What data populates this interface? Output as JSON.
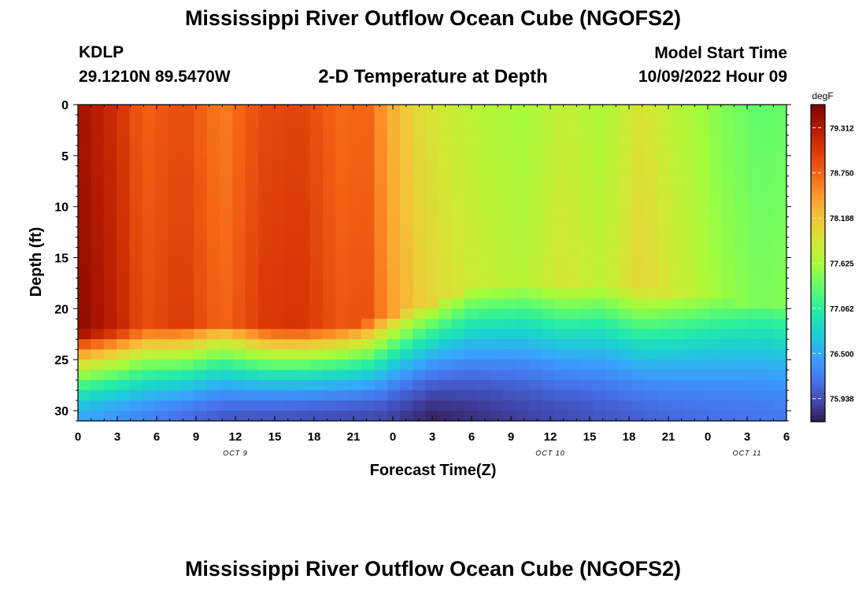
{
  "header": {
    "title": "Mississippi River Outflow Ocean Cube (NGOFS2)",
    "station_id": "KDLP",
    "station_coords": "29.1210N  89.5470W",
    "subtitle": "2-D Temperature at Depth",
    "model_start_label": "Model Start Time",
    "model_start_value": "10/09/2022 Hour 09"
  },
  "footer": {
    "title": "Mississippi River Outflow Ocean Cube (NGOFS2)"
  },
  "chart_data": {
    "type": "heatmap",
    "xlabel": "Forecast Time(Z)",
    "ylabel": "Depth (ft)",
    "x_tick_labels": [
      "0",
      "3",
      "6",
      "9",
      "12",
      "15",
      "18",
      "21",
      "0",
      "3",
      "6",
      "9",
      "12",
      "15",
      "18",
      "21",
      "0",
      "3",
      "6"
    ],
    "x_range_hours": [
      0,
      54
    ],
    "date_labels": [
      {
        "label": "OCT 9",
        "hour": 12
      },
      {
        "label": "OCT 10",
        "hour": 36
      },
      {
        "label": "OCT 11",
        "hour": 51
      }
    ],
    "y_tick_labels": [
      "0",
      "5",
      "10",
      "15",
      "20",
      "25",
      "30"
    ],
    "y_range_ft": [
      0,
      31
    ],
    "y_inverted": true,
    "colorbar": {
      "unit": "degF",
      "tick_labels": [
        "79.312",
        "78.750",
        "78.188",
        "77.625",
        "77.062",
        "76.500",
        "75.938"
      ],
      "range": [
        75.6,
        79.6
      ]
    },
    "colormap": [
      "#30123b",
      "#4145ab",
      "#4675ed",
      "#39a2fc",
      "#1bcfd4",
      "#24eca6",
      "#61fc6c",
      "#a4fc3b",
      "#d1e834",
      "#f3c63a",
      "#fe9b2d",
      "#f36315",
      "#d93806",
      "#b11901",
      "#7a0402"
    ],
    "surface_temperature_degF": [
      {
        "hour": 0,
        "value": 79.4
      },
      {
        "hour": 3,
        "value": 79.1
      },
      {
        "hour": 5,
        "value": 78.75
      },
      {
        "hour": 8,
        "value": 78.9
      },
      {
        "hour": 11,
        "value": 78.6
      },
      {
        "hour": 14,
        "value": 78.9
      },
      {
        "hour": 17,
        "value": 78.95
      },
      {
        "hour": 20,
        "value": 78.7
      },
      {
        "hour": 22,
        "value": 78.75
      },
      {
        "hour": 24,
        "value": 78.3
      },
      {
        "hour": 26,
        "value": 78.0
      },
      {
        "hour": 28,
        "value": 77.85
      },
      {
        "hour": 31,
        "value": 77.7
      },
      {
        "hour": 34,
        "value": 77.6
      },
      {
        "hour": 37,
        "value": 77.8
      },
      {
        "hour": 40,
        "value": 77.65
      },
      {
        "hour": 43,
        "value": 77.95
      },
      {
        "hour": 46,
        "value": 77.7
      },
      {
        "hour": 49,
        "value": 77.45
      },
      {
        "hour": 52,
        "value": 77.3
      },
      {
        "hour": 54,
        "value": 77.35
      }
    ],
    "mixed_layer_depth_ft": [
      {
        "hour": 0,
        "value": 22.5
      },
      {
        "hour": 6,
        "value": 22.0
      },
      {
        "hour": 11,
        "value": 21.5
      },
      {
        "hour": 15,
        "value": 22.0
      },
      {
        "hour": 20,
        "value": 22.0
      },
      {
        "hour": 23,
        "value": 21.0
      },
      {
        "hour": 27,
        "value": 19.5
      },
      {
        "hour": 30,
        "value": 18.0
      },
      {
        "hour": 36,
        "value": 18.0
      },
      {
        "hour": 44,
        "value": 18.5
      },
      {
        "hour": 50,
        "value": 19.5
      },
      {
        "hour": 54,
        "value": 20.0
      }
    ],
    "bottom_temperature_degF": [
      {
        "hour": 0,
        "value": 76.5
      },
      {
        "hour": 11,
        "value": 76.0
      },
      {
        "hour": 23,
        "value": 75.9
      },
      {
        "hour": 27,
        "value": 75.7
      },
      {
        "hour": 36,
        "value": 75.9
      },
      {
        "hour": 45,
        "value": 76.1
      },
      {
        "hour": 54,
        "value": 76.2
      }
    ]
  }
}
